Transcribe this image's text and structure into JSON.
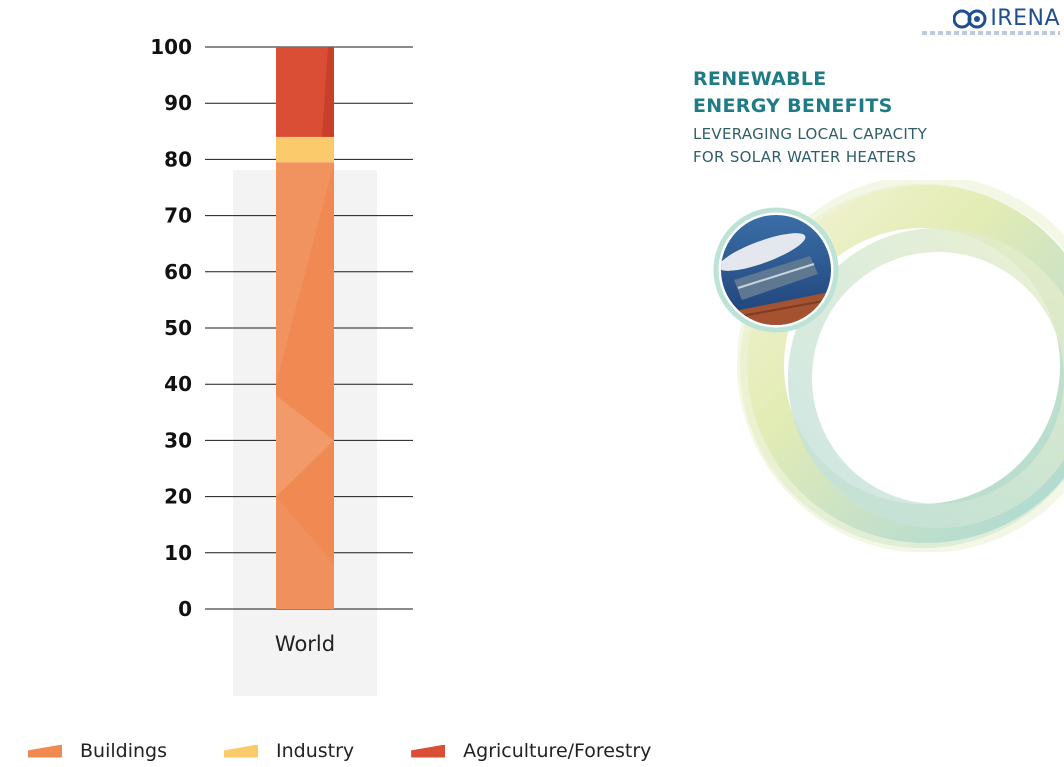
{
  "chart_data": {
    "type": "bar",
    "stacked": true,
    "categories": [
      "World"
    ],
    "series": [
      {
        "name": "Buildings",
        "values": [
          79.5
        ],
        "color": "#f08a52"
      },
      {
        "name": "Industry",
        "values": [
          4.5
        ],
        "color": "#fbcb6b"
      },
      {
        "name": "Agriculture/Forestry",
        "values": [
          16
        ],
        "color": "#d94e35"
      }
    ],
    "yticks": [
      "0",
      "10",
      "20",
      "30",
      "40",
      "50",
      "60",
      "70",
      "80",
      "90",
      "100"
    ],
    "ylim": [
      0,
      100
    ],
    "grid": true,
    "legend_position": "bottom-left"
  },
  "cover": {
    "logo_text": "IRENA",
    "title_line1": "RENEWABLE",
    "title_line2": "ENERGY BENEFITS",
    "subtitle_line1": "LEVERAGING LOCAL CAPACITY",
    "subtitle_line2": "FOR SOLAR WATER HEATERS",
    "logo_icon": "irena-logo-icon",
    "photo": "solar-water-heater-photo"
  }
}
